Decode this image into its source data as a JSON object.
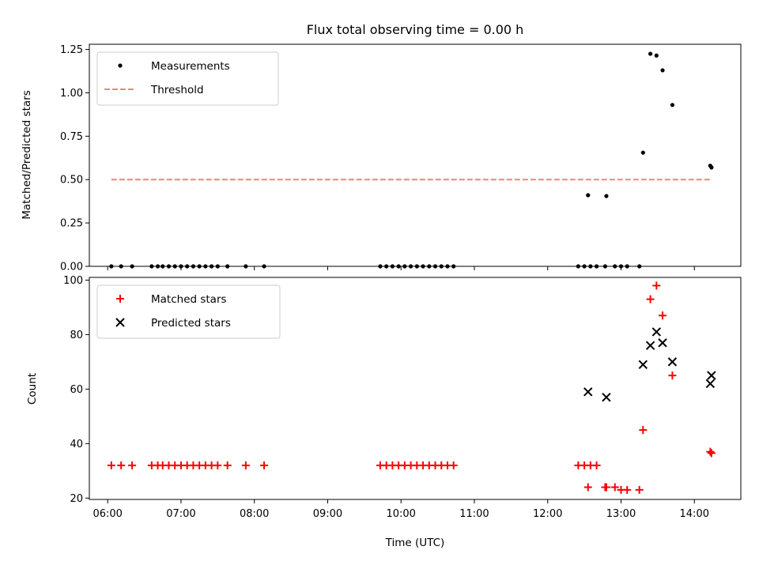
{
  "chart_data": [
    {
      "type": "scatter",
      "title": "Flux total observing time = 0.00 h",
      "xlabel": "",
      "ylabel": "Matched/Predicted stars",
      "xlim": [
        "05:45",
        "14:38"
      ],
      "ylim": [
        0,
        1.28
      ],
      "yticks": [
        0.0,
        0.25,
        0.5,
        0.75,
        1.0,
        1.25
      ],
      "ytick_labels": [
        "0.00",
        "0.25",
        "0.50",
        "0.75",
        "1.00",
        "1.25"
      ],
      "legend": {
        "placement": "top-left",
        "entries": [
          "Measurements",
          "Threshold"
        ]
      },
      "series": [
        {
          "name": "Measurements",
          "marker": "dot",
          "color": "#000000",
          "x": [
            "06:03",
            "06:11",
            "06:20",
            "06:36",
            "06:41",
            "06:45",
            "06:50",
            "06:55",
            "07:00",
            "07:05",
            "07:10",
            "07:15",
            "07:20",
            "07:25",
            "07:30",
            "07:38",
            "07:53",
            "08:08",
            "09:43",
            "09:48",
            "09:53",
            "09:58",
            "10:03",
            "10:08",
            "10:13",
            "10:18",
            "10:23",
            "10:28",
            "10:33",
            "10:38",
            "10:43",
            "12:25",
            "12:30",
            "12:35",
            "12:40",
            "12:47",
            "12:55",
            "13:00",
            "13:05",
            "13:15",
            "12:33",
            "12:48",
            "13:18",
            "13:24",
            "13:29",
            "13:34",
            "13:42",
            "14:13",
            "14:14"
          ],
          "y": [
            0,
            0,
            0,
            0,
            0,
            0,
            0,
            0,
            0,
            0,
            0,
            0,
            0,
            0,
            0,
            0,
            0,
            0,
            0,
            0,
            0,
            0,
            0,
            0,
            0,
            0,
            0,
            0,
            0,
            0,
            0,
            0,
            0,
            0,
            0,
            0,
            0,
            0,
            0,
            0,
            0.41,
            0.405,
            0.655,
            1.225,
            1.215,
            1.13,
            0.93,
            0.58,
            0.57
          ]
        },
        {
          "name": "Threshold",
          "marker": "dashed-line",
          "color": "#ff7f7f",
          "x": [
            "06:03",
            "14:14"
          ],
          "y": [
            0.5,
            0.5
          ]
        }
      ]
    },
    {
      "type": "scatter",
      "title": "",
      "xlabel": "Time (UTC)",
      "ylabel": "Count",
      "xlim": [
        "05:45",
        "14:38"
      ],
      "ylim": [
        19.5,
        101
      ],
      "yticks": [
        20,
        40,
        60,
        80,
        100
      ],
      "ytick_labels": [
        "20",
        "40",
        "60",
        "80",
        "100"
      ],
      "xticks": [
        "06:00",
        "07:00",
        "08:00",
        "09:00",
        "10:00",
        "11:00",
        "12:00",
        "13:00",
        "14:00"
      ],
      "legend": {
        "placement": "top-left",
        "entries": [
          "Matched stars",
          "Predicted stars"
        ]
      },
      "series": [
        {
          "name": "Matched stars",
          "marker": "plus",
          "color": "#ff0000",
          "x": [
            "06:03",
            "06:11",
            "06:20",
            "06:36",
            "06:41",
            "06:45",
            "06:50",
            "06:55",
            "07:00",
            "07:05",
            "07:10",
            "07:15",
            "07:20",
            "07:25",
            "07:30",
            "07:38",
            "07:53",
            "08:08",
            "09:43",
            "09:48",
            "09:53",
            "09:58",
            "10:03",
            "10:08",
            "10:13",
            "10:18",
            "10:23",
            "10:28",
            "10:33",
            "10:38",
            "10:43",
            "12:25",
            "12:30",
            "12:35",
            "12:40",
            "12:47",
            "12:55",
            "13:00",
            "13:05",
            "13:15",
            "12:33",
            "12:48",
            "13:18",
            "13:24",
            "13:29",
            "13:34",
            "13:42",
            "14:13",
            "14:14"
          ],
          "y": [
            32,
            32,
            32,
            32,
            32,
            32,
            32,
            32,
            32,
            32,
            32,
            32,
            32,
            32,
            32,
            32,
            32,
            32,
            32,
            32,
            32,
            32,
            32,
            32,
            32,
            32,
            32,
            32,
            32,
            32,
            32,
            32,
            32,
            32,
            32,
            24,
            24,
            23,
            23,
            23,
            24,
            24,
            45,
            93,
            98,
            87,
            65,
            37,
            36.5
          ]
        },
        {
          "name": "Predicted stars",
          "marker": "x",
          "color": "#000000",
          "x": [
            "12:33",
            "12:48",
            "13:18",
            "13:24",
            "13:29",
            "13:34",
            "13:42",
            "14:13",
            "14:14"
          ],
          "y": [
            59,
            57,
            69,
            76,
            81,
            77,
            70,
            62,
            65
          ]
        }
      ]
    }
  ]
}
